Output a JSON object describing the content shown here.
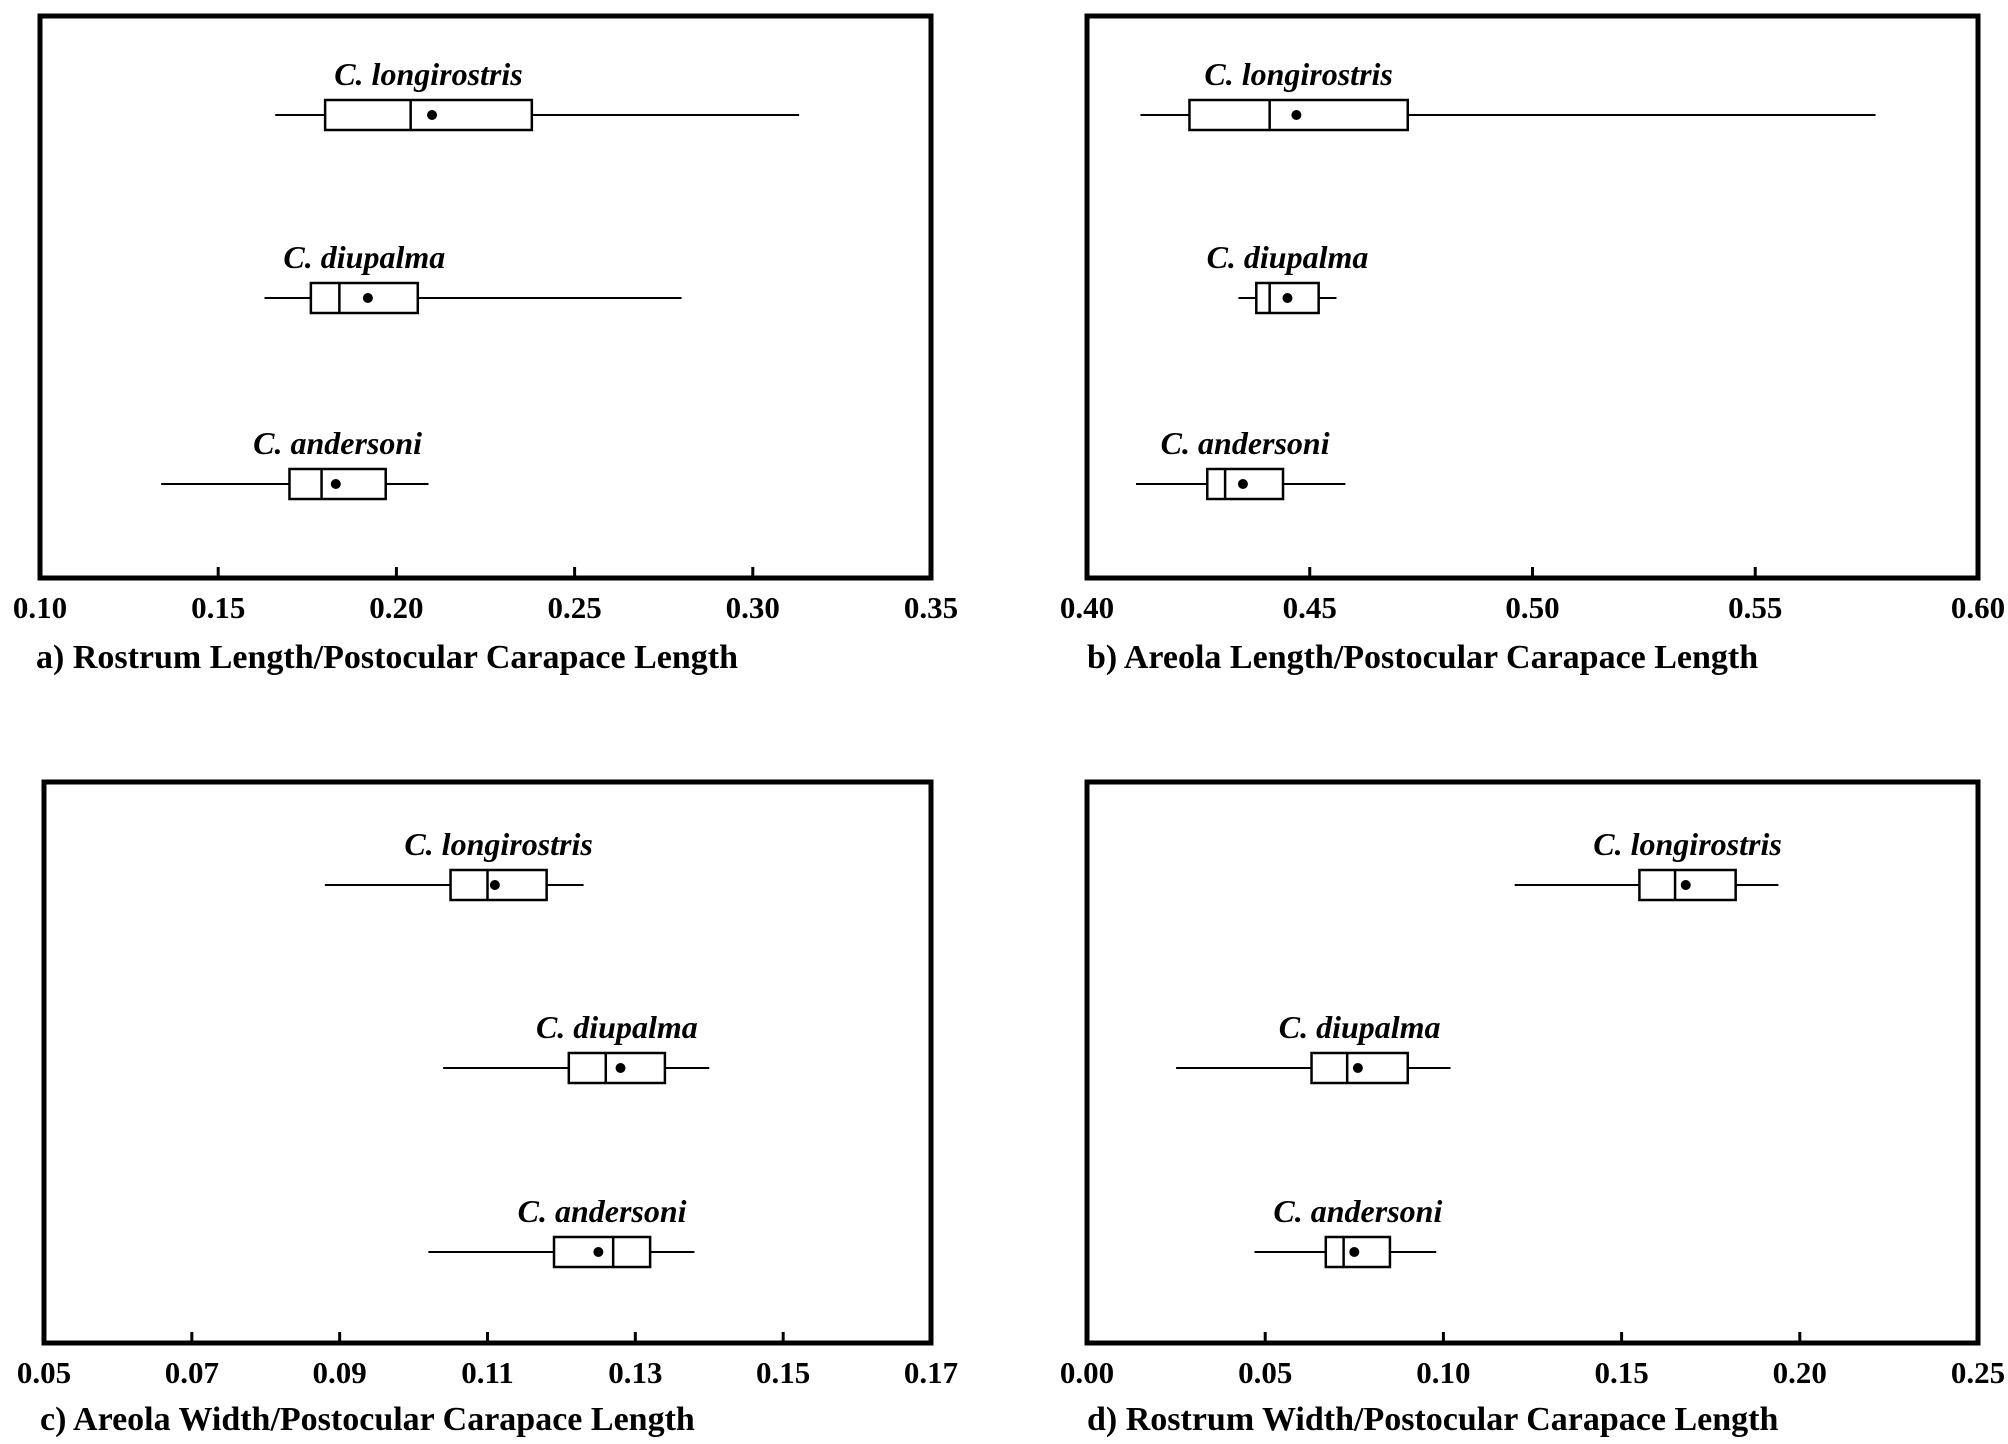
{
  "chart_data": [
    {
      "type": "boxplot",
      "panel": "a",
      "caption": "a) Rostrum Length/Postocular Carapace Length",
      "xlim": [
        0.1,
        0.35
      ],
      "xticks": [
        "0.10",
        "0.15",
        "0.20",
        "0.25",
        "0.30",
        "0.35"
      ],
      "species": [
        {
          "name": "C. longirostris",
          "min": 0.166,
          "q1": 0.18,
          "median": 0.204,
          "q3": 0.238,
          "max": 0.313,
          "mean": 0.21
        },
        {
          "name": "C. diupalma",
          "min": 0.163,
          "q1": 0.176,
          "median": 0.184,
          "q3": 0.206,
          "max": 0.28,
          "mean": 0.192
        },
        {
          "name": "C. andersoni",
          "min": 0.134,
          "q1": 0.17,
          "median": 0.179,
          "q3": 0.197,
          "max": 0.209,
          "mean": 0.183
        }
      ]
    },
    {
      "type": "boxplot",
      "panel": "b",
      "caption": "b) Areola Length/Postocular Carapace Length",
      "xlim": [
        0.4,
        0.6
      ],
      "xticks": [
        "0.40",
        "0.45",
        "0.50",
        "0.55",
        "0.60"
      ],
      "species": [
        {
          "name": "C. longirostris",
          "min": 0.412,
          "q1": 0.423,
          "median": 0.441,
          "q3": 0.472,
          "max": 0.577,
          "mean": 0.447
        },
        {
          "name": "C. diupalma",
          "min": 0.434,
          "q1": 0.438,
          "median": 0.441,
          "q3": 0.452,
          "max": 0.456,
          "mean": 0.445
        },
        {
          "name": "C. andersoni",
          "min": 0.411,
          "q1": 0.427,
          "median": 0.431,
          "q3": 0.444,
          "max": 0.458,
          "mean": 0.435
        }
      ]
    },
    {
      "type": "boxplot",
      "panel": "c",
      "caption": "c) Areola Width/Postocular Carapace Length",
      "xlim": [
        0.05,
        0.17
      ],
      "xticks": [
        "0.05",
        "0.07",
        "0.09",
        "0.11",
        "0.13",
        "0.15",
        "0.17"
      ],
      "species": [
        {
          "name": "C. longirostris",
          "min": 0.088,
          "q1": 0.105,
          "median": 0.11,
          "q3": 0.118,
          "max": 0.123,
          "mean": 0.111
        },
        {
          "name": "C. diupalma",
          "min": 0.104,
          "q1": 0.121,
          "median": 0.126,
          "q3": 0.134,
          "max": 0.14,
          "mean": 0.128
        },
        {
          "name": "C. andersoni",
          "min": 0.102,
          "q1": 0.119,
          "median": 0.127,
          "q3": 0.132,
          "max": 0.138,
          "mean": 0.125
        }
      ]
    },
    {
      "type": "boxplot",
      "panel": "d",
      "caption": "d) Rostrum Width/Postocular Carapace Length",
      "xlim": [
        0.0,
        0.25
      ],
      "xticks": [
        "0.00",
        "0.05",
        "0.10",
        "0.15",
        "0.20",
        "0.25"
      ],
      "species": [
        {
          "name": "C. longirostris",
          "min": 0.12,
          "q1": 0.155,
          "median": 0.165,
          "q3": 0.182,
          "max": 0.194,
          "mean": 0.168
        },
        {
          "name": "C. diupalma",
          "min": 0.025,
          "q1": 0.063,
          "median": 0.073,
          "q3": 0.09,
          "max": 0.102,
          "mean": 0.076
        },
        {
          "name": "C. andersoni",
          "min": 0.047,
          "q1": 0.067,
          "median": 0.072,
          "q3": 0.085,
          "max": 0.098,
          "mean": 0.075
        }
      ]
    }
  ]
}
